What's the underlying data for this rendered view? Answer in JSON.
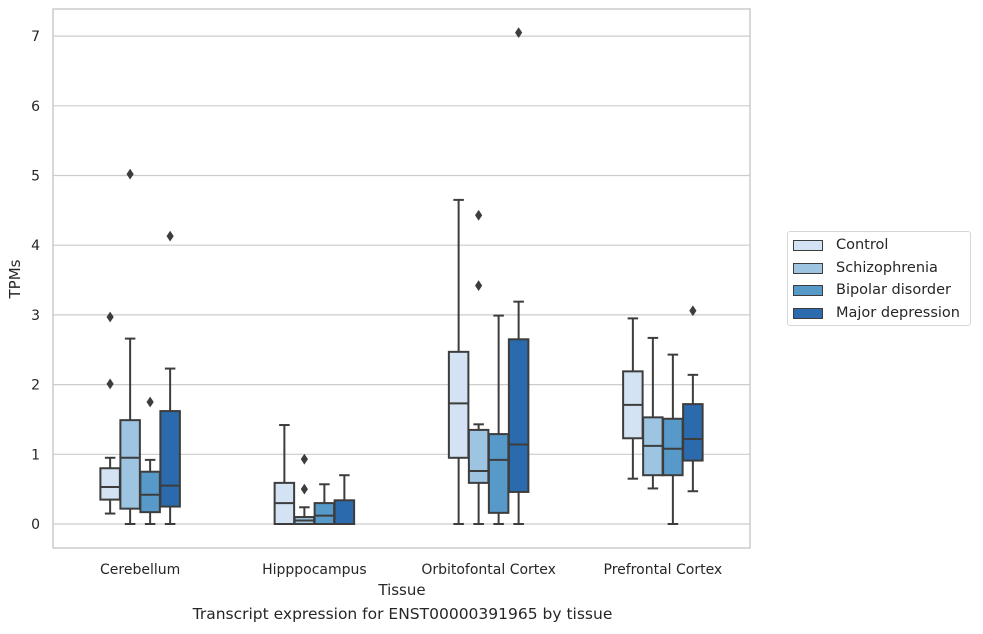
{
  "chart_data": {
    "type": "box",
    "title": "Transcript expression for ENST00000391965 by tissue",
    "xlabel": "Tissue",
    "ylabel": "TPMs",
    "ylim": [
      -0.33,
      7.4
    ],
    "yticks": [
      0,
      1,
      2,
      3,
      4,
      5,
      6,
      7
    ],
    "grid": true,
    "legend_position": "right",
    "categories": [
      "Cerebellum",
      "Hipppocampus",
      "Orbitofontal Cortex",
      "Prefrontal Cortex"
    ],
    "series": [
      {
        "name": "Control",
        "color": "#d4e3f3",
        "boxes": [
          {
            "whislo": 0.15,
            "q1": 0.35,
            "med": 0.53,
            "q3": 0.8,
            "whishi": 0.95,
            "fliers": [
              2.97,
              2.01
            ]
          },
          {
            "whislo": 0.0,
            "q1": 0.0,
            "med": 0.3,
            "q3": 0.59,
            "whishi": 1.42,
            "fliers": []
          },
          {
            "whislo": 0.0,
            "q1": 0.95,
            "med": 1.73,
            "q3": 2.47,
            "whishi": 4.65,
            "fliers": []
          },
          {
            "whislo": 0.65,
            "q1": 1.23,
            "med": 1.71,
            "q3": 2.19,
            "whishi": 2.95,
            "fliers": []
          }
        ]
      },
      {
        "name": "Schizophrenia",
        "color": "#9dc4e0",
        "boxes": [
          {
            "whislo": 0.0,
            "q1": 0.22,
            "med": 0.95,
            "q3": 1.49,
            "whishi": 2.66,
            "fliers": [
              5.02
            ]
          },
          {
            "whislo": 0.0,
            "q1": 0.0,
            "med": 0.05,
            "q3": 0.1,
            "whishi": 0.24,
            "fliers": [
              0.93,
              0.5
            ]
          },
          {
            "whislo": 0.0,
            "q1": 0.59,
            "med": 0.76,
            "q3": 1.35,
            "whishi": 1.43,
            "fliers": [
              4.43,
              3.42
            ]
          },
          {
            "whislo": 0.51,
            "q1": 0.7,
            "med": 1.12,
            "q3": 1.53,
            "whishi": 2.67,
            "fliers": []
          }
        ]
      },
      {
        "name": "Bipolar disorder",
        "color": "#5799c8",
        "boxes": [
          {
            "whislo": 0.0,
            "q1": 0.17,
            "med": 0.42,
            "q3": 0.75,
            "whishi": 0.92,
            "fliers": [
              1.75
            ]
          },
          {
            "whislo": 0.0,
            "q1": 0.0,
            "med": 0.12,
            "q3": 0.3,
            "whishi": 0.57,
            "fliers": []
          },
          {
            "whislo": 0.0,
            "q1": 0.16,
            "med": 0.92,
            "q3": 1.29,
            "whishi": 2.99,
            "fliers": []
          },
          {
            "whislo": 0.0,
            "q1": 0.7,
            "med": 1.08,
            "q3": 1.51,
            "whishi": 2.43,
            "fliers": []
          }
        ]
      },
      {
        "name": "Major depression",
        "color": "#2b6aac",
        "boxes": [
          {
            "whislo": 0.0,
            "q1": 0.25,
            "med": 0.55,
            "q3": 1.62,
            "whishi": 2.23,
            "fliers": [
              4.13
            ]
          },
          {
            "whislo": 0.0,
            "q1": 0.0,
            "med": 0.0,
            "q3": 0.34,
            "whishi": 0.7,
            "fliers": []
          },
          {
            "whislo": 0.0,
            "q1": 0.46,
            "med": 1.14,
            "q3": 2.65,
            "whishi": 3.19,
            "fliers": [
              7.05
            ]
          },
          {
            "whislo": 0.47,
            "q1": 0.91,
            "med": 1.22,
            "q3": 1.72,
            "whishi": 2.14,
            "fliers": [
              3.06
            ]
          }
        ]
      }
    ]
  }
}
